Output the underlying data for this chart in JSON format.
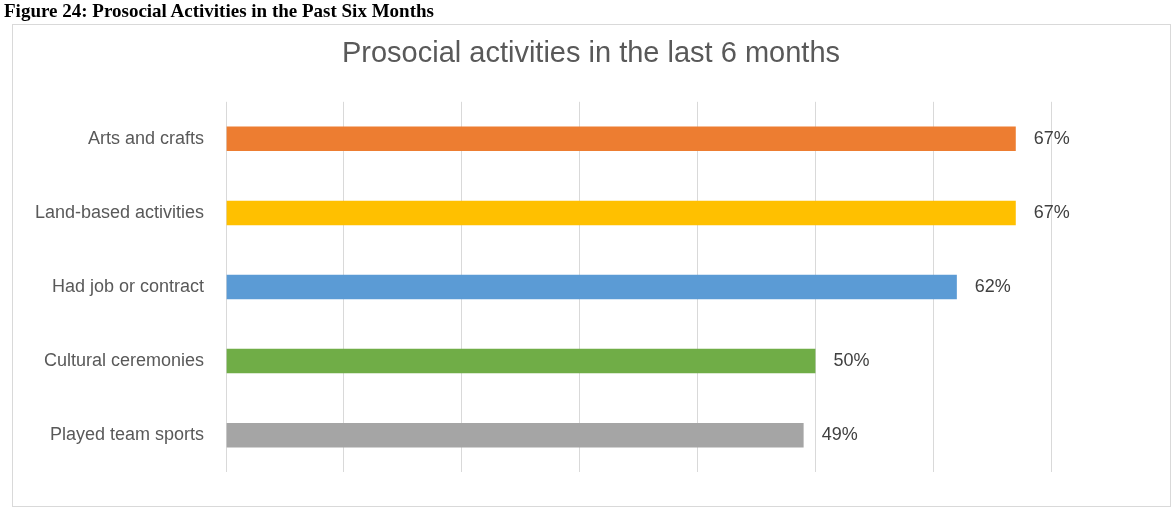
{
  "chart_data": {
    "type": "bar",
    "orientation": "horizontal",
    "title": "Prosocial activities in the last 6 months",
    "annotations": [
      "Figure 24: Prosocial Activities in the Past Six Months"
    ],
    "categories": [
      "Arts and crafts",
      "Land-based activities",
      "Had job or contract",
      "Cultural ceremonies",
      "Played team sports"
    ],
    "values": [
      67,
      67,
      62,
      50,
      49
    ],
    "value_labels": [
      "67%",
      "67%",
      "62%",
      "50%",
      "49%"
    ],
    "colors": [
      "#ed7d31",
      "#ffc000",
      "#5b9bd5",
      "#70ad47",
      "#a5a5a5"
    ],
    "xlim": [
      0,
      80
    ],
    "xticks": [
      {
        "value": 0,
        "label": null
      },
      {
        "value": 10,
        "label": null
      },
      {
        "value": 20,
        "label": null
      },
      {
        "value": 30,
        "label": null
      },
      {
        "value": 40,
        "label": null
      },
      {
        "value": 50,
        "label": null
      },
      {
        "value": 60,
        "label": null
      },
      {
        "value": 70,
        "label": null
      },
      {
        "value": 80,
        "label": null
      }
    ],
    "grid": "x",
    "legend": false
  }
}
